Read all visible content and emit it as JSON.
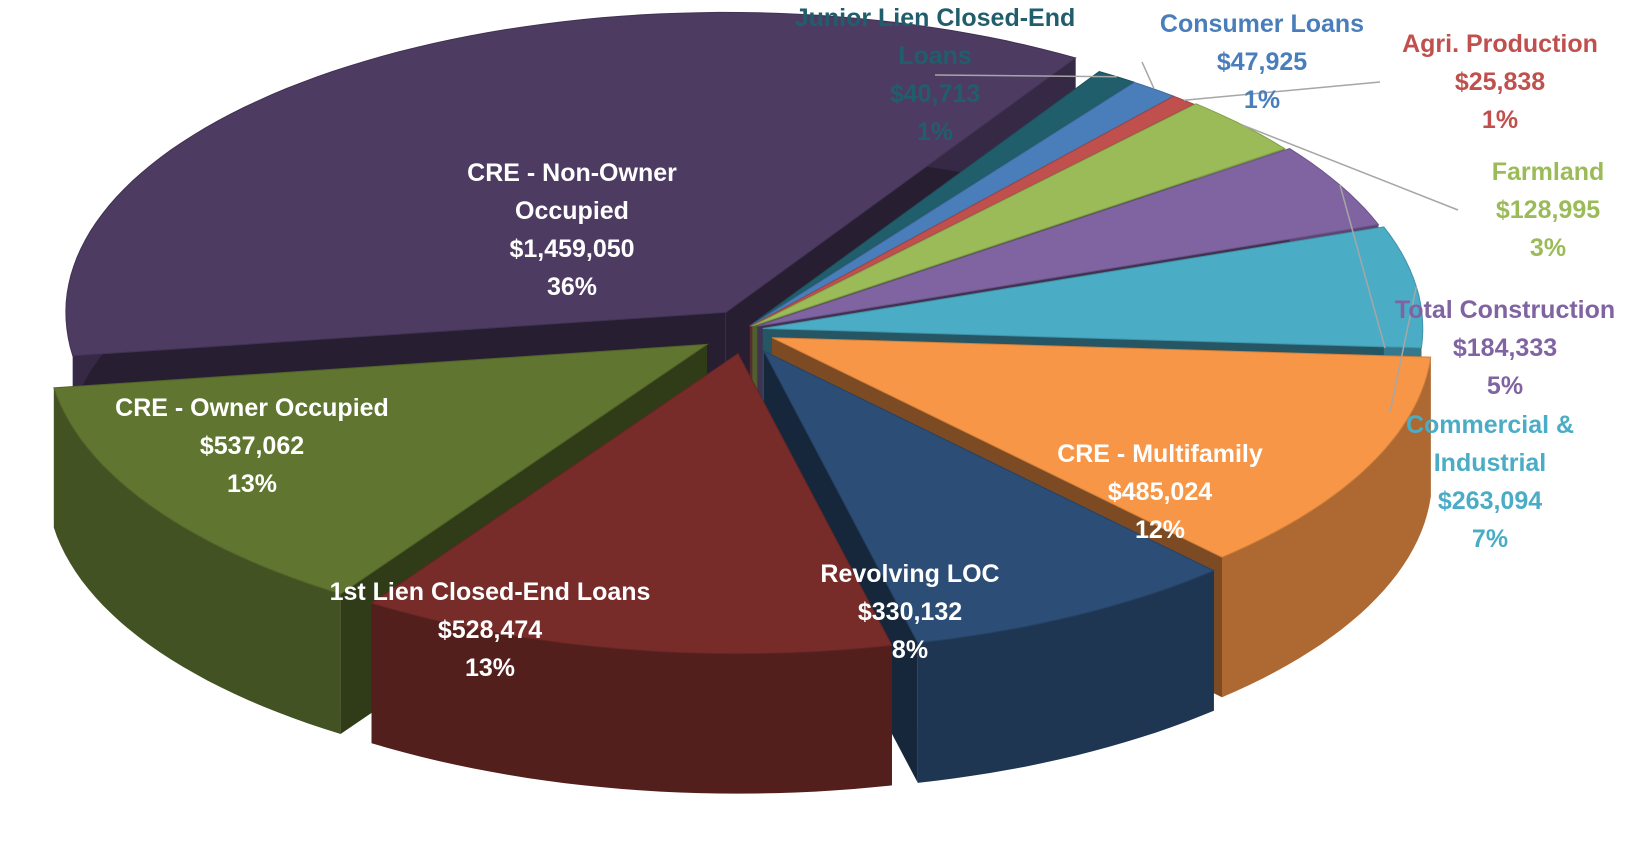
{
  "chart_data": {
    "type": "pie",
    "three_d": true,
    "categories": [
      "Junior Lien Closed-End Loans",
      "Consumer Loans",
      "Agri. Production",
      "Farmland",
      "Total Construction",
      "Commercial & Industrial",
      "CRE - Multifamily",
      "Revolving LOC",
      "1st Lien Closed-End Loans",
      "CRE - Owner Occupied",
      "CRE - Non-Owner Occupied"
    ],
    "values": [
      40713,
      47925,
      25838,
      128995,
      184333,
      263094,
      485024,
      330132,
      528474,
      537062,
      1459050
    ],
    "value_labels": [
      "$40,713",
      "$47,925",
      "$25,838",
      "$128,995",
      "$184,333",
      "$263,094",
      "$485,024",
      "$330,132",
      "$528,474",
      "$537,062",
      "$1,459,050"
    ],
    "percentages": [
      1,
      1,
      1,
      3,
      5,
      7,
      12,
      8,
      13,
      13,
      36
    ],
    "percentage_labels": [
      "1%",
      "1%",
      "1%",
      "3%",
      "5%",
      "7%",
      "12%",
      "8%",
      "13%",
      "13%",
      "36%"
    ],
    "colors": [
      "#215e6b",
      "#4a7ebb",
      "#c0504d",
      "#9bbb59",
      "#8064a2",
      "#4bacc6",
      "#f79646",
      "#2c4d75",
      "#772c2a",
      "#5f7530",
      "#4d3b62"
    ]
  }
}
